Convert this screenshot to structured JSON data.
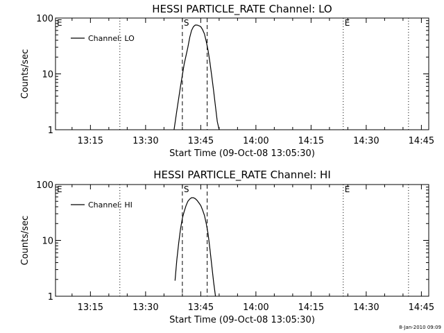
{
  "window": {
    "footer_date": "8-Jan-2010 09:09"
  },
  "chart_data": [
    {
      "type": "line",
      "title": "HESSI PARTICLE_RATE Channel: LO",
      "xlabel": "Start Time (09-Oct-08 13:05:30)",
      "ylabel": "Counts/sec",
      "yscale": "log",
      "xlim": [
        "13:05:30",
        "14:47:00"
      ],
      "ylim": [
        1,
        100
      ],
      "x_ticks": [
        "13:15",
        "13:30",
        "13:45",
        "14:00",
        "14:15",
        "14:30",
        "14:45"
      ],
      "y_ticks": [
        "1",
        "10",
        "100"
      ],
      "legend": {
        "position": "top-left",
        "entries": [
          "Channel: LO"
        ]
      },
      "series": [
        {
          "name": "Channel: LO",
          "x": [
            "13:37:45",
            "13:38:30",
            "13:39:30",
            "13:40:30",
            "13:41:30",
            "13:42:00",
            "13:42:30",
            "13:43:00",
            "13:43:30",
            "13:44:00",
            "13:44:30",
            "13:45:00",
            "13:45:30",
            "13:46:00",
            "13:46:30",
            "13:47:00",
            "13:47:30",
            "13:48:00",
            "13:48:30",
            "13:49:00",
            "13:49:30",
            "13:50:00"
          ],
          "y": [
            1.0,
            2.2,
            6.0,
            15,
            30,
            45,
            60,
            70,
            75,
            75,
            73,
            70,
            62,
            52,
            38,
            26,
            16,
            9,
            5,
            2.6,
            1.4,
            1.0
          ]
        }
      ],
      "markers": [
        {
          "label": "E",
          "time": "13:05:30",
          "style": "dotted"
        },
        {
          "label": "",
          "time": "13:23:00",
          "style": "dotted"
        },
        {
          "label": "S",
          "time": "13:40:00",
          "style": "dashed"
        },
        {
          "label": "",
          "time": "13:46:45",
          "style": "dashed"
        },
        {
          "label": "E",
          "time": "14:23:45",
          "style": "dotted"
        },
        {
          "label": "",
          "time": "14:41:30",
          "style": "dotted"
        }
      ]
    },
    {
      "type": "line",
      "title": "HESSI PARTICLE_RATE Channel: HI",
      "xlabel": "Start Time (09-Oct-08 13:05:30)",
      "ylabel": "Counts/sec",
      "yscale": "log",
      "xlim": [
        "13:05:30",
        "14:47:00"
      ],
      "ylim": [
        1,
        100
      ],
      "x_ticks": [
        "13:15",
        "13:30",
        "13:45",
        "14:00",
        "14:15",
        "14:30",
        "14:45"
      ],
      "y_ticks": [
        "1",
        "10",
        "100"
      ],
      "legend": {
        "position": "top-left",
        "entries": [
          "Channel: HI"
        ]
      },
      "series": [
        {
          "name": "Channel: HI",
          "x": [
            "13:38:00",
            "13:38:30",
            "13:39:00",
            "13:39:30",
            "13:40:00",
            "13:40:30",
            "13:41:00",
            "13:41:30",
            "13:42:00",
            "13:42:30",
            "13:43:00",
            "13:43:30",
            "13:44:00",
            "13:44:30",
            "13:45:00",
            "13:45:30",
            "13:46:00",
            "13:46:30",
            "13:47:00",
            "13:47:30",
            "13:48:00",
            "13:48:30",
            "13:49:00"
          ],
          "y": [
            1.9,
            4.5,
            9,
            16,
            25,
            33,
            42,
            50,
            55,
            58,
            58,
            56,
            52,
            47,
            42,
            35,
            28,
            20,
            13,
            7,
            3.5,
            1.8,
            1.0
          ]
        }
      ],
      "markers": [
        {
          "label": "E",
          "time": "13:05:30",
          "style": "dotted"
        },
        {
          "label": "",
          "time": "13:23:00",
          "style": "dotted"
        },
        {
          "label": "S",
          "time": "13:40:00",
          "style": "dashed"
        },
        {
          "label": "",
          "time": "13:46:45",
          "style": "dashed"
        },
        {
          "label": "E",
          "time": "14:23:45",
          "style": "dotted"
        },
        {
          "label": "",
          "time": "14:41:30",
          "style": "dotted"
        }
      ]
    }
  ]
}
